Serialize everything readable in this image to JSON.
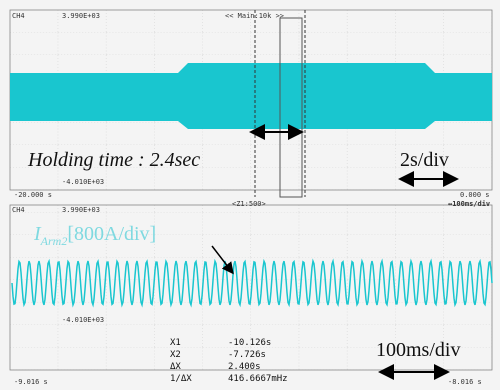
{
  "top": {
    "channel": "CH4",
    "top_value": "3.990E+03",
    "zoom": "<< Main:10k >>",
    "bottom_value": "-4.010E+03",
    "x_start": "-20.000 s",
    "x_end": "0.000 s",
    "annotation": "Holding time : 2.4sec",
    "scale": "2s/div"
  },
  "bottom": {
    "channel": "CH4",
    "top_value": "3.990E+03",
    "zoom": "<Z1:500>",
    "scale_top": "↔100ms/div",
    "label": {
      "main": "I",
      "sub": "Arm2",
      "rest": "[800A/div]"
    },
    "bottom_value": "-4.010E+03",
    "x_start": "-9.016 s",
    "x_end": "-8.016 s",
    "scale": "100ms/div",
    "cursors": [
      [
        "X1",
        "-10.126s"
      ],
      [
        "X2",
        "-7.726s"
      ],
      [
        "ΔX",
        "2.400s"
      ],
      [
        "1/ΔX",
        "416.6667mHz"
      ]
    ]
  }
}
